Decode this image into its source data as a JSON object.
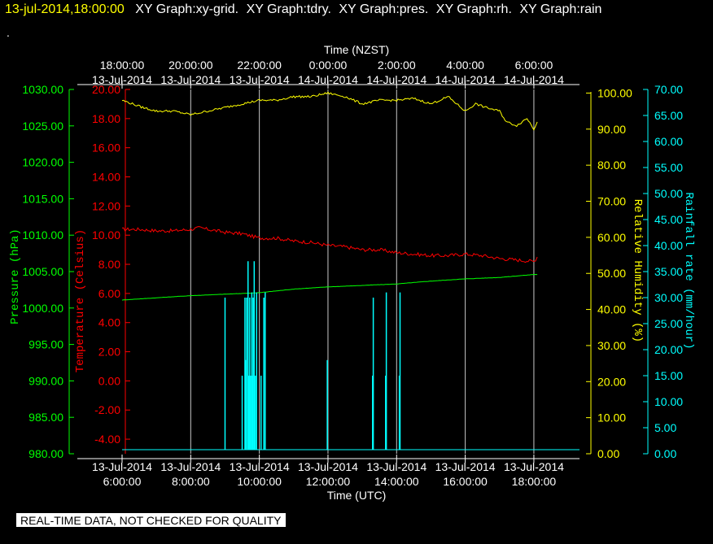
{
  "header": {
    "datetime": "13-jul-2014,18:00:00",
    "graphs": [
      "XY Graph:xy-grid.",
      "XY Graph:tdry.",
      "XY Graph:pres.",
      "XY Graph:rh.",
      "XY Graph:rain"
    ]
  },
  "stray_mark": ".",
  "footer": {
    "text": "REAL-TIME DATA, NOT CHECKED FOR QUALITY"
  },
  "chart_data": {
    "type": "line",
    "top_axis": {
      "label": "Time (NZST)",
      "ticks": [
        {
          "time": "18:00:00",
          "date": "13-Jul-2014"
        },
        {
          "time": "20:00:00",
          "date": "13-Jul-2014"
        },
        {
          "time": "22:00:00",
          "date": "13-Jul-2014"
        },
        {
          "time": "0:00:00",
          "date": "14-Jul-2014"
        },
        {
          "time": "2:00:00",
          "date": "14-Jul-2014"
        },
        {
          "time": "4:00:00",
          "date": "14-Jul-2014"
        },
        {
          "time": "6:00:00",
          "date": "14-Jul-2014"
        }
      ]
    },
    "bottom_axis": {
      "label": "Time (UTC)",
      "ticks": [
        {
          "date": "13-Jul-2014",
          "time": "6:00:00"
        },
        {
          "date": "13-Jul-2014",
          "time": "8:00:00"
        },
        {
          "date": "13-Jul-2014",
          "time": "10:00:00"
        },
        {
          "date": "13-Jul-2014",
          "time": "12:00:00"
        },
        {
          "date": "13-Jul-2014",
          "time": "14:00:00"
        },
        {
          "date": "13-Jul-2014",
          "time": "16:00:00"
        },
        {
          "date": "13-Jul-2014",
          "time": "18:00:00"
        }
      ],
      "xlim_hours_utc": [
        6.0,
        19.33
      ]
    },
    "grid": "vertical lines at bottom-axis ticks",
    "y_axes": [
      {
        "id": "pressure",
        "label": "Pressure (hPa)",
        "color": "#00ff00",
        "side": "left-outer",
        "ylim": [
          980.0,
          1030.0
        ],
        "ticks": [
          "980.00",
          "985.00",
          "990.00",
          "995.00",
          "1000.00",
          "1005.00",
          "1010.00",
          "1015.00",
          "1020.00",
          "1025.00",
          "1030.00"
        ]
      },
      {
        "id": "temperature",
        "label": "Temperature (Celsius)",
        "color": "#ff0000",
        "side": "left-inner",
        "ylim": [
          -5.0,
          20.0
        ],
        "ticks": [
          "-4.00",
          "-2.00",
          "0.00",
          "2.00",
          "4.00",
          "6.00",
          "8.00",
          "10.00",
          "12.00",
          "14.00",
          "16.00",
          "18.00",
          "20.00"
        ]
      },
      {
        "id": "humidity",
        "label": "Relative Humidity (%)",
        "color": "#ffff00",
        "side": "right-inner",
        "ylim": [
          0.0,
          101.0
        ],
        "ticks": [
          "0.00",
          "10.00",
          "20.00",
          "30.00",
          "40.00",
          "50.00",
          "60.00",
          "70.00",
          "80.00",
          "90.00",
          "100.00"
        ]
      },
      {
        "id": "rain",
        "label": "Rainfall rate (mm/hour)",
        "color": "#00ffff",
        "side": "right-outer",
        "ylim": [
          0.0,
          70.0
        ],
        "ticks": [
          "0.00",
          "5.00",
          "10.00",
          "15.00",
          "20.00",
          "25.00",
          "30.00",
          "35.00",
          "40.00",
          "45.00",
          "50.00",
          "55.00",
          "60.00",
          "65.00",
          "70.00"
        ]
      }
    ],
    "series": [
      {
        "name": "tdry",
        "axis": "temperature",
        "color": "#ff0000",
        "jitter": 0.12,
        "points": [
          [
            6.0,
            10.4
          ],
          [
            6.5,
            10.4
          ],
          [
            7.0,
            10.3
          ],
          [
            7.5,
            10.3
          ],
          [
            8.0,
            10.4
          ],
          [
            8.25,
            10.5
          ],
          [
            8.5,
            10.4
          ],
          [
            9.0,
            10.2
          ],
          [
            9.5,
            10.1
          ],
          [
            10.0,
            9.8
          ],
          [
            10.5,
            9.8
          ],
          [
            11.0,
            9.6
          ],
          [
            11.5,
            9.5
          ],
          [
            12.0,
            9.3
          ],
          [
            12.5,
            9.2
          ],
          [
            13.0,
            9.0
          ],
          [
            13.5,
            9.0
          ],
          [
            14.0,
            8.8
          ],
          [
            14.5,
            8.7
          ],
          [
            15.0,
            8.6
          ],
          [
            15.5,
            8.6
          ],
          [
            16.0,
            8.7
          ],
          [
            16.5,
            8.6
          ],
          [
            17.0,
            8.4
          ],
          [
            17.5,
            8.3
          ],
          [
            18.0,
            8.2
          ],
          [
            18.1,
            8.5
          ]
        ]
      },
      {
        "name": "pres",
        "axis": "pressure",
        "color": "#00ff00",
        "jitter": 0.02,
        "points": [
          [
            6.0,
            1001.1
          ],
          [
            7.0,
            1001.4
          ],
          [
            8.0,
            1001.7
          ],
          [
            9.0,
            1001.9
          ],
          [
            10.0,
            1002.1
          ],
          [
            11.0,
            1002.6
          ],
          [
            12.0,
            1002.9
          ],
          [
            13.0,
            1003.1
          ],
          [
            14.0,
            1003.3
          ],
          [
            15.0,
            1003.7
          ],
          [
            16.0,
            1004.0
          ],
          [
            17.0,
            1004.2
          ],
          [
            18.0,
            1004.6
          ],
          [
            18.1,
            1004.6
          ]
        ]
      },
      {
        "name": "rh",
        "axis": "humidity",
        "color": "#ffff00",
        "jitter": 0.3,
        "points": [
          [
            6.0,
            98.0
          ],
          [
            6.3,
            97.0
          ],
          [
            6.6,
            96.0
          ],
          [
            7.0,
            95.0
          ],
          [
            7.5,
            95.0
          ],
          [
            8.0,
            94.0
          ],
          [
            8.5,
            95.0
          ],
          [
            9.0,
            96.0
          ],
          [
            9.5,
            97.0
          ],
          [
            10.0,
            98.0
          ],
          [
            10.5,
            98.0
          ],
          [
            11.0,
            99.0
          ],
          [
            11.5,
            99.0
          ],
          [
            12.0,
            100.0
          ],
          [
            12.5,
            99.0
          ],
          [
            13.0,
            97.0
          ],
          [
            13.5,
            98.0
          ],
          [
            14.0,
            98.0
          ],
          [
            14.5,
            98.5
          ],
          [
            15.0,
            97.0
          ],
          [
            15.5,
            99.0
          ],
          [
            16.0,
            95.0
          ],
          [
            16.3,
            97.0
          ],
          [
            16.6,
            96.0
          ],
          [
            17.0,
            95.0
          ],
          [
            17.2,
            92.0
          ],
          [
            17.5,
            91.0
          ],
          [
            17.8,
            93.0
          ],
          [
            18.0,
            90.0
          ],
          [
            18.1,
            92.0
          ]
        ]
      },
      {
        "name": "rain",
        "axis": "rain",
        "color": "#00ffff",
        "type": "spikes",
        "baseline": 0.0,
        "spikes": [
          [
            9.0,
            30.0
          ],
          [
            9.5,
            15.0
          ],
          [
            9.58,
            30.0
          ],
          [
            9.6,
            18.0
          ],
          [
            9.63,
            30.0
          ],
          [
            9.67,
            37.0
          ],
          [
            9.7,
            15.0
          ],
          [
            9.72,
            30.0
          ],
          [
            9.75,
            15.0
          ],
          [
            9.78,
            31.0
          ],
          [
            9.8,
            15.0
          ],
          [
            9.82,
            30.0
          ],
          [
            9.85,
            37.0
          ],
          [
            9.88,
            15.0
          ],
          [
            9.92,
            31.0
          ],
          [
            10.05,
            15.0
          ],
          [
            10.13,
            30.0
          ],
          [
            10.17,
            31.0
          ],
          [
            11.98,
            18.0
          ],
          [
            13.3,
            15.0
          ],
          [
            13.32,
            30.0
          ],
          [
            13.68,
            15.0
          ],
          [
            13.7,
            31.0
          ],
          [
            14.08,
            15.0
          ],
          [
            14.1,
            31.0
          ]
        ]
      }
    ]
  }
}
